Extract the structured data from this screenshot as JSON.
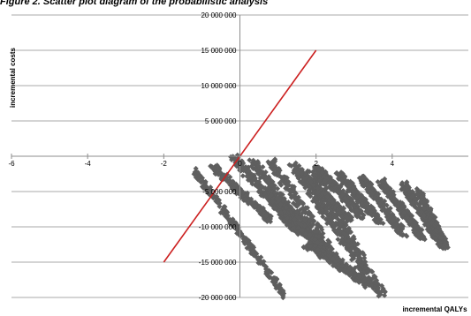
{
  "figure": {
    "caption": "Figure 2. Scatter plot diagram of the probabilistic analysis"
  },
  "chart_data": {
    "type": "scatter",
    "title": "",
    "xlabel": "incremental QALYs",
    "ylabel": "incremental costs",
    "xlim": [
      -6,
      6
    ],
    "ylim": [
      -20000000,
      20000000
    ],
    "x_ticks": [
      -6,
      -4,
      -2,
      0,
      2,
      4
    ],
    "x_tick_labels": [
      "-6",
      "-4",
      "-2",
      "0",
      "2",
      "4"
    ],
    "y_ticks": [
      20000000,
      15000000,
      10000000,
      5000000,
      0,
      -5000000,
      -10000000,
      -15000000,
      -20000000
    ],
    "y_tick_labels": [
      "20 000 000",
      "15 000 000",
      "10 000 000",
      "5 000 000",
      "",
      "-5 000 000",
      "-10 000 000",
      "-15 000 000",
      "-20 000 000"
    ],
    "grid": {
      "horizontal": true,
      "vertical": false
    },
    "legend": "none",
    "series": [
      {
        "kind": "scatter",
        "marker": "diamond",
        "color": "#5f5f5f",
        "bands": [
          {
            "x0": -1.2,
            "y0": -2000000,
            "x1": 1.2,
            "y1": -19800000,
            "width": 0.12
          },
          {
            "x0": -0.7,
            "y0": -1500000,
            "x1": 0.8,
            "y1": -9000000,
            "width": 0.18
          },
          {
            "x0": -0.2,
            "y0": 0,
            "x1": 1.6,
            "y1": -11000000,
            "width": 0.25
          },
          {
            "x0": 0.3,
            "y0": -500000,
            "x1": 2.2,
            "y1": -13500000,
            "width": 0.25
          },
          {
            "x0": 0.8,
            "y0": -500000,
            "x1": 2.7,
            "y1": -16000000,
            "width": 0.25
          },
          {
            "x0": 1.4,
            "y0": -1000000,
            "x1": 3.4,
            "y1": -17500000,
            "width": 0.25
          },
          {
            "x0": 1.9,
            "y0": -2000000,
            "x1": 3.7,
            "y1": -19500000,
            "width": 0.25
          },
          {
            "x0": 1.5,
            "y0": -2000000,
            "x1": 2.9,
            "y1": -9000000,
            "width": 0.2
          },
          {
            "x0": 2.0,
            "y0": -1500000,
            "x1": 3.2,
            "y1": -8500000,
            "width": 0.2
          },
          {
            "x0": 2.6,
            "y0": -2500000,
            "x1": 3.7,
            "y1": -9500000,
            "width": 0.2
          },
          {
            "x0": 3.2,
            "y0": -3000000,
            "x1": 4.3,
            "y1": -11000000,
            "width": 0.2
          },
          {
            "x0": 3.7,
            "y0": -3500000,
            "x1": 4.8,
            "y1": -11500000,
            "width": 0.2
          },
          {
            "x0": 4.3,
            "y0": -4000000,
            "x1": 5.3,
            "y1": -12500000,
            "width": 0.2
          },
          {
            "x0": 4.7,
            "y0": -5000000,
            "x1": 5.4,
            "y1": -12800000,
            "width": 0.15
          },
          {
            "x0": 1.8,
            "y0": -12500000,
            "x1": 3.5,
            "y1": -18500000,
            "width": 0.3
          },
          {
            "x0": 0.7,
            "y0": -5000000,
            "x1": 2.3,
            "y1": -14000000,
            "width": 0.3
          }
        ]
      },
      {
        "kind": "line",
        "color": "#cc2020",
        "x": [
          -2,
          2
        ],
        "y": [
          -15000000,
          15000000
        ]
      }
    ]
  }
}
